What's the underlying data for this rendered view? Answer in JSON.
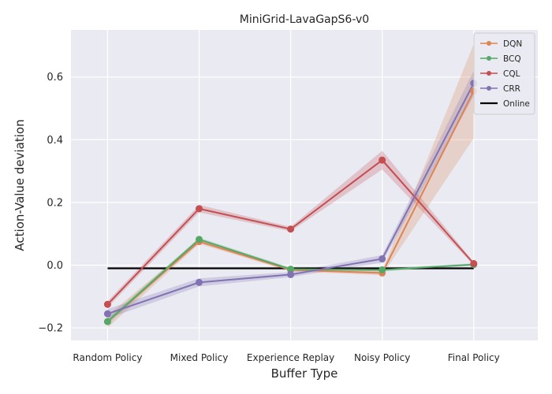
{
  "chart_data": {
    "type": "line",
    "title": "MiniGrid-LavaGapS6-v0",
    "xlabel": "Buffer Type",
    "ylabel": "Action-Value deviation",
    "categories": [
      "Random Policy",
      "Mixed Policy",
      "Experience Replay",
      "Noisy Policy",
      "Final Policy"
    ],
    "xlim": [
      -0.4,
      4.7
    ],
    "ylim": [
      -0.24,
      0.75
    ],
    "yticks": [
      -0.2,
      0.0,
      0.2,
      0.4,
      0.6
    ],
    "ytick_labels": [
      "−0.2",
      "0.0",
      "0.2",
      "0.4",
      "0.6"
    ],
    "grid": true,
    "legend_position": "top-right",
    "series": [
      {
        "name": "DQN",
        "color": "#dd8452",
        "values": [
          -0.18,
          0.075,
          -0.015,
          -0.025,
          0.555
        ],
        "lower": [
          -0.2,
          0.068,
          -0.02,
          -0.032,
          0.405
        ],
        "upper": [
          -0.16,
          0.082,
          -0.01,
          -0.018,
          0.705
        ]
      },
      {
        "name": "BCQ",
        "color": "#55a868",
        "values": [
          -0.18,
          0.082,
          -0.013,
          -0.015,
          0.002
        ],
        "lower": [
          -0.19,
          0.076,
          -0.018,
          -0.02,
          -0.002
        ],
        "upper": [
          -0.17,
          0.088,
          -0.008,
          -0.01,
          0.006
        ]
      },
      {
        "name": "CQL",
        "color": "#c44e52",
        "values": [
          -0.125,
          0.18,
          0.115,
          0.335,
          0.005
        ],
        "lower": [
          -0.135,
          0.168,
          0.108,
          0.305,
          0.0
        ],
        "upper": [
          -0.115,
          0.192,
          0.122,
          0.365,
          0.01
        ]
      },
      {
        "name": "CRR",
        "color": "#8172b3",
        "values": [
          -0.155,
          -0.055,
          -0.03,
          0.02,
          0.58
        ],
        "lower": [
          -0.17,
          -0.068,
          -0.038,
          0.008,
          0.54
        ],
        "upper": [
          -0.14,
          -0.042,
          -0.022,
          0.032,
          0.62
        ]
      }
    ],
    "reference_line": {
      "name": "Online",
      "color": "#000000",
      "value": -0.01
    }
  }
}
